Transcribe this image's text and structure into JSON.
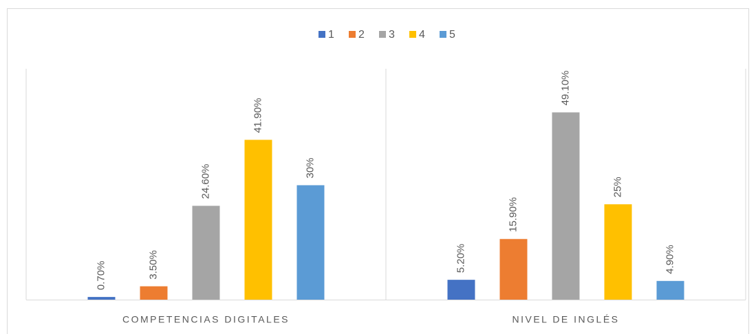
{
  "chart_data": {
    "type": "bar",
    "categories": [
      "COMPETENCIAS DIGITALES",
      "NIVEL DE INGLÉS"
    ],
    "series": [
      {
        "name": "1",
        "color": "#4472c4",
        "values": [
          0.7,
          5.2
        ],
        "value_labels": [
          "0.70%",
          "5.20%"
        ]
      },
      {
        "name": "2",
        "color": "#ed7d31",
        "values": [
          3.5,
          15.9
        ],
        "value_labels": [
          "3.50%",
          "15.90%"
        ]
      },
      {
        "name": "3",
        "color": "#a5a5a5",
        "values": [
          24.6,
          49.1
        ],
        "value_labels": [
          "24.60%",
          "49.10%"
        ]
      },
      {
        "name": "4",
        "color": "#ffc000",
        "values": [
          41.9,
          25
        ],
        "value_labels": [
          "41.90%",
          "25%"
        ]
      },
      {
        "name": "5",
        "color": "#5b9bd5",
        "values": [
          30,
          4.9
        ],
        "value_labels": [
          "30%",
          "4.90%"
        ]
      }
    ],
    "ylim": [
      0,
      60
    ],
    "legend": "top"
  }
}
